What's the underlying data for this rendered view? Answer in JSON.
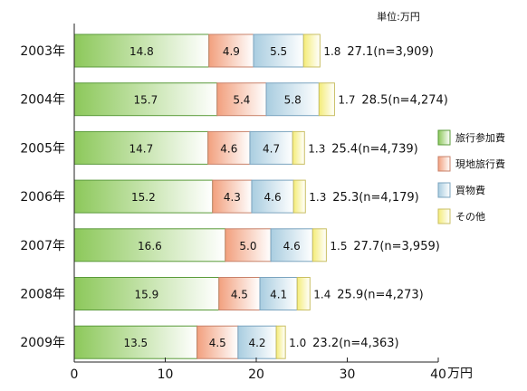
{
  "chart_data": {
    "type": "bar",
    "orientation": "horizontal",
    "stacked": true,
    "unit_label": "単位:万円",
    "x_unit": "万円",
    "xlim": [
      0,
      40
    ],
    "xticks": [
      0,
      10,
      20,
      30,
      40
    ],
    "categories": [
      "2003年",
      "2004年",
      "2005年",
      "2006年",
      "2007年",
      "2008年",
      "2009年"
    ],
    "series": [
      {
        "name": "旅行参加費",
        "values": [
          14.8,
          15.7,
          14.7,
          15.2,
          16.6,
          15.9,
          13.5
        ]
      },
      {
        "name": "現地旅行費",
        "values": [
          4.9,
          5.4,
          4.6,
          4.3,
          5.0,
          4.5,
          4.5
        ]
      },
      {
        "name": "買物費",
        "values": [
          5.5,
          5.8,
          4.7,
          4.6,
          4.6,
          4.1,
          4.2
        ]
      },
      {
        "name": "その他",
        "values": [
          1.8,
          1.7,
          1.3,
          1.3,
          1.5,
          1.4,
          1.0
        ]
      }
    ],
    "totals": [
      "27.1",
      "28.5",
      "25.4",
      "25.3",
      "27.7",
      "25.9",
      "23.2"
    ],
    "n": [
      "3,909",
      "4,274",
      "4,739",
      "4,179",
      "3,959",
      "4,273",
      "4,363"
    ],
    "legend_position": "right",
    "grid": false,
    "colors": {
      "series": [
        "#8cc85a",
        "#f2a07e",
        "#a9cde0",
        "#f4ec78"
      ],
      "series_light": [
        "#ffffff",
        "#ffffff",
        "#ffffff",
        "#ffffff"
      ],
      "outline": [
        "#5a9b3a",
        "#c8826a",
        "#7ba4bf",
        "#c9bf63"
      ],
      "axis": "#222222"
    }
  }
}
